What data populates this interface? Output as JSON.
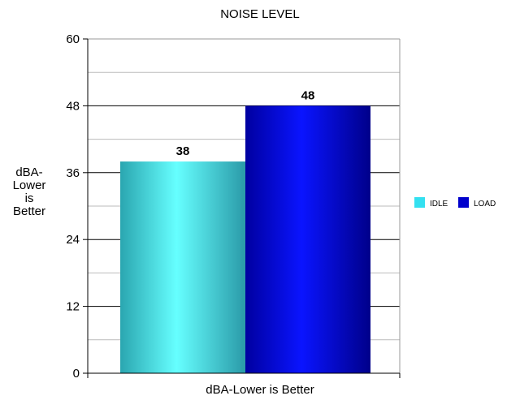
{
  "chart_data": {
    "type": "bar",
    "title": "NOISE LEVEL",
    "categories": [
      "dBA-Lower is Better"
    ],
    "xlabel": "dBA-Lower is Better",
    "ylabel_lines": [
      "dBA-",
      "Lower",
      "is",
      "Better"
    ],
    "ylim": [
      0,
      60
    ],
    "yticks": [
      0,
      12,
      24,
      36,
      48,
      60
    ],
    "grid": true,
    "legend_position": "right",
    "series": [
      {
        "name": "IDLE",
        "values": [
          38
        ],
        "color": "#33e0f0"
      },
      {
        "name": "LOAD",
        "values": [
          48
        ],
        "color": "#0000cc"
      }
    ]
  }
}
